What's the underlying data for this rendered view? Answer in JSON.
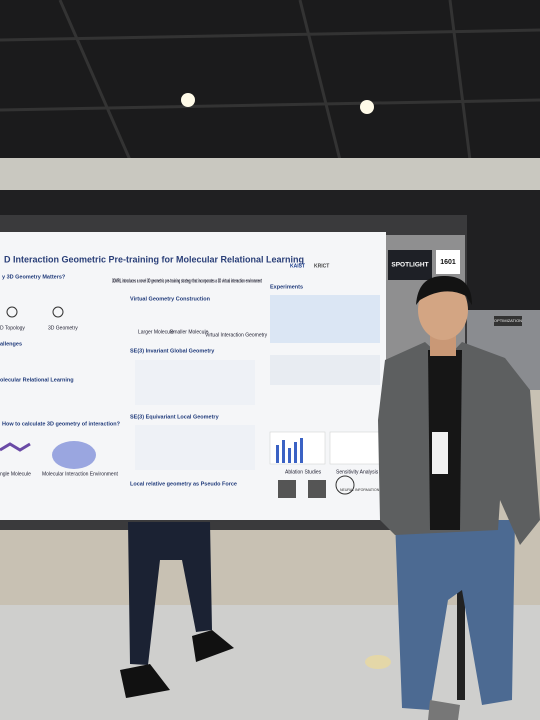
{
  "poster": {
    "title": "D Interaction Geometric Pre-training for Molecular Relational Learning",
    "badge": "SPOTLIGHT",
    "number": "1601",
    "logos": [
      "KAIST",
      "KRICT"
    ],
    "intro": "3DMRL introduces a novel 3D geometric pre-training strategy that incorporates a 3D virtual interaction environment",
    "sections": {
      "why": "y 3D Geometry Matters?",
      "topology": "D Topology",
      "geometry": "3D Geometry",
      "challenges": "allenges",
      "mrl": "olecular Relational Learning",
      "how": "How to calculate 3D geometry of interaction?",
      "single": "ngle Molecule",
      "environment": "Molecular Interaction Environment",
      "construction": "Virtual Geometry Construction",
      "larger": "Larger Molecule",
      "smaller": "Smaller Molecule",
      "virtual": "Virtual Interaction Geometry",
      "global": "SE(3) Invariant Global Geometry",
      "local": "SE(3) Equivariant Local Geometry",
      "pseudo": "Local relative geometry as Pseudo Force",
      "experiments": "Experiments",
      "ablation": "Ablation Studies",
      "sensitivity": "Sensitivity Analysis"
    },
    "footer_logo": "NEURAL INFORMATION PROCESSING SYSTEMS"
  },
  "background_sign": "OPTIMIZATION"
}
